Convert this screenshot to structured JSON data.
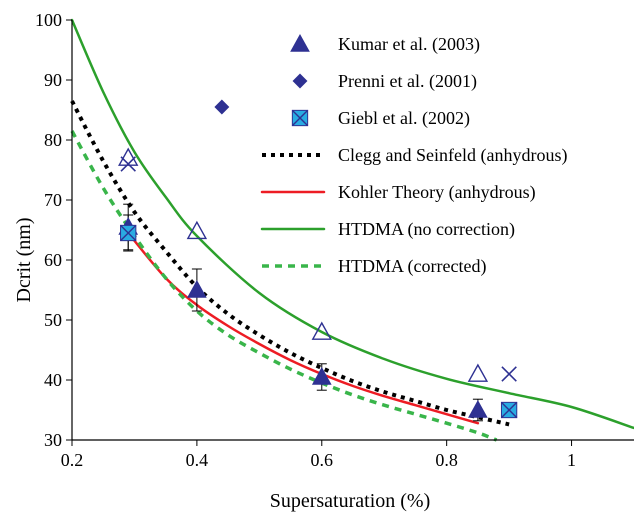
{
  "chart_data": {
    "type": "scatter",
    "title": "",
    "xlabel": "Supersaturation (%)",
    "ylabel": "Dcrit (nm)",
    "xlim": [
      0.2,
      1.1
    ],
    "ylim": [
      30,
      100
    ],
    "xticks": [
      {
        "value": 0.2,
        "label": "0.2"
      },
      {
        "value": 0.4,
        "label": "0.4"
      },
      {
        "value": 0.6,
        "label": "0.6"
      },
      {
        "value": 0.8,
        "label": "0.8"
      },
      {
        "value": 1.0,
        "label": "1"
      }
    ],
    "yticks": [
      {
        "value": 30,
        "label": "30"
      },
      {
        "value": 40,
        "label": "40"
      },
      {
        "value": 50,
        "label": "50"
      },
      {
        "value": 60,
        "label": "60"
      },
      {
        "value": 70,
        "label": "70"
      },
      {
        "value": 80,
        "label": "80"
      },
      {
        "value": 90,
        "label": "90"
      },
      {
        "value": 100,
        "label": "100"
      }
    ],
    "grid": false,
    "legend_position": "top-right",
    "series": [
      {
        "name": "Kumar et al. (2003)",
        "kind": "marker",
        "marker": "triangle-filled",
        "color": "#2e3192",
        "points": [
          {
            "x": 0.29,
            "y": 65.5,
            "err": 3.8
          },
          {
            "x": 0.4,
            "y": 55.0,
            "err": 3.5
          },
          {
            "x": 0.6,
            "y": 40.5,
            "err": 2.2
          },
          {
            "x": 0.85,
            "y": 35.0,
            "err": 1.8
          }
        ]
      },
      {
        "name": "Prenni et al. (2001)",
        "kind": "marker",
        "marker": "diamond-filled",
        "color": "#2e3192",
        "points": [
          {
            "x": 0.44,
            "y": 85.5
          }
        ]
      },
      {
        "name": "Giebl et al. (2002)",
        "kind": "marker",
        "marker": "square-x",
        "color": "#29abe2",
        "edge_color": "#2e3192",
        "points": [
          {
            "x": 0.29,
            "y": 64.5,
            "err": 3.0
          },
          {
            "x": 0.9,
            "y": 35.0
          }
        ]
      },
      {
        "name": "Clegg and Seinfeld (anhydrous)",
        "kind": "line",
        "style": "dotted",
        "color": "#000000",
        "points": [
          {
            "x": 0.2,
            "y": 86.5
          },
          {
            "x": 0.25,
            "y": 76.5
          },
          {
            "x": 0.3,
            "y": 68.0
          },
          {
            "x": 0.35,
            "y": 61.5
          },
          {
            "x": 0.4,
            "y": 55.5
          },
          {
            "x": 0.45,
            "y": 51.0
          },
          {
            "x": 0.5,
            "y": 47.5
          },
          {
            "x": 0.55,
            "y": 44.5
          },
          {
            "x": 0.6,
            "y": 42.0
          },
          {
            "x": 0.65,
            "y": 39.8
          },
          {
            "x": 0.7,
            "y": 38.0
          },
          {
            "x": 0.75,
            "y": 36.5
          },
          {
            "x": 0.8,
            "y": 35.0
          },
          {
            "x": 0.85,
            "y": 33.8
          },
          {
            "x": 0.9,
            "y": 32.6
          }
        ]
      },
      {
        "name": "Kohler Theory (anhydrous)",
        "kind": "line",
        "style": "solid",
        "color": "#ed1c24",
        "points": [
          {
            "x": 0.29,
            "y": 64.5
          },
          {
            "x": 0.35,
            "y": 57.0
          },
          {
            "x": 0.4,
            "y": 52.5
          },
          {
            "x": 0.45,
            "y": 49.0
          },
          {
            "x": 0.5,
            "y": 46.0
          },
          {
            "x": 0.55,
            "y": 43.3
          },
          {
            "x": 0.6,
            "y": 41.0
          },
          {
            "x": 0.65,
            "y": 39.0
          },
          {
            "x": 0.7,
            "y": 37.3
          },
          {
            "x": 0.75,
            "y": 35.8
          },
          {
            "x": 0.8,
            "y": 34.3
          },
          {
            "x": 0.85,
            "y": 32.8
          }
        ]
      },
      {
        "name": "HTDMA (no correction)",
        "kind": "line",
        "style": "solid",
        "color": "#2ca02c",
        "points": [
          {
            "x": 0.2,
            "y": 100.0
          },
          {
            "x": 0.25,
            "y": 88.0
          },
          {
            "x": 0.3,
            "y": 78.0
          },
          {
            "x": 0.35,
            "y": 70.5
          },
          {
            "x": 0.4,
            "y": 64.0
          },
          {
            "x": 0.5,
            "y": 54.5
          },
          {
            "x": 0.6,
            "y": 48.0
          },
          {
            "x": 0.7,
            "y": 43.5
          },
          {
            "x": 0.8,
            "y": 40.2
          },
          {
            "x": 0.9,
            "y": 37.8
          },
          {
            "x": 1.0,
            "y": 35.5
          },
          {
            "x": 1.1,
            "y": 32.0
          }
        ]
      },
      {
        "name": "HTDMA (corrected)",
        "kind": "line",
        "style": "dashed",
        "color": "#39b54a",
        "points": [
          {
            "x": 0.2,
            "y": 81.5
          },
          {
            "x": 0.25,
            "y": 72.0
          },
          {
            "x": 0.3,
            "y": 64.0
          },
          {
            "x": 0.35,
            "y": 57.0
          },
          {
            "x": 0.4,
            "y": 51.5
          },
          {
            "x": 0.45,
            "y": 47.5
          },
          {
            "x": 0.5,
            "y": 44.5
          },
          {
            "x": 0.55,
            "y": 41.8
          },
          {
            "x": 0.6,
            "y": 39.5
          },
          {
            "x": 0.65,
            "y": 37.5
          },
          {
            "x": 0.7,
            "y": 35.8
          },
          {
            "x": 0.75,
            "y": 34.3
          },
          {
            "x": 0.8,
            "y": 32.8
          },
          {
            "x": 0.85,
            "y": 31.2
          },
          {
            "x": 0.88,
            "y": 30.0
          }
        ]
      },
      {
        "name": "",
        "kind": "marker",
        "marker": "triangle-open",
        "color": "#2e3192",
        "points": [
          {
            "x": 0.29,
            "y": 77.0
          },
          {
            "x": 0.4,
            "y": 64.8
          },
          {
            "x": 0.6,
            "y": 48.0
          },
          {
            "x": 0.85,
            "y": 41.0
          }
        ]
      },
      {
        "name": "",
        "kind": "marker",
        "marker": "x",
        "color": "#2e3192",
        "points": [
          {
            "x": 0.29,
            "y": 76.0
          },
          {
            "x": 0.9,
            "y": 41.0
          }
        ]
      }
    ]
  }
}
